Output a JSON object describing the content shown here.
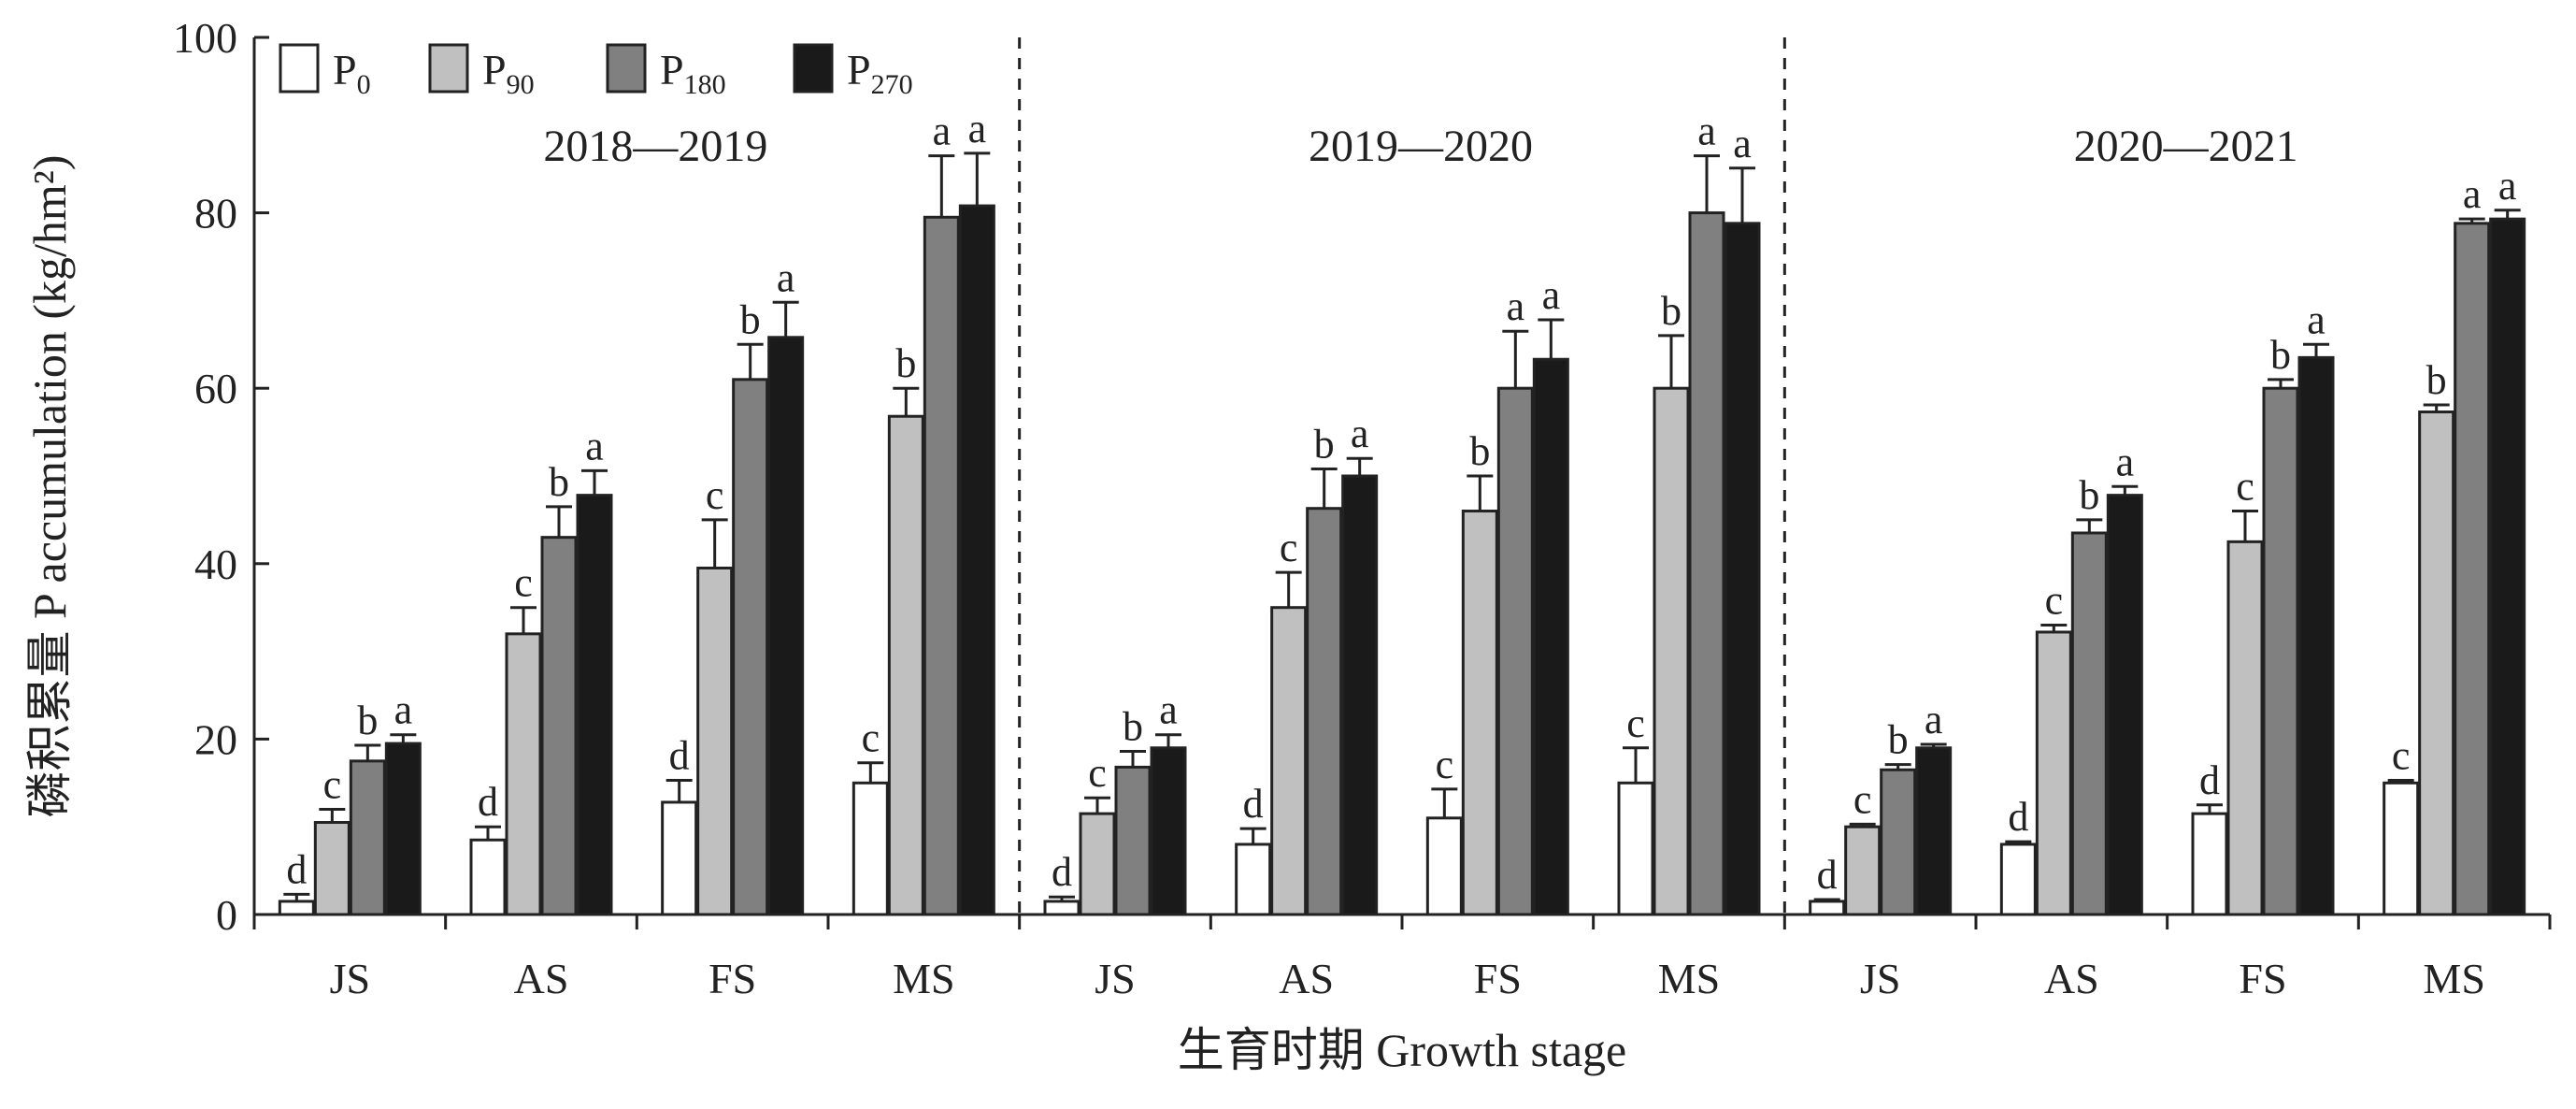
{
  "chart_data": {
    "type": "bar",
    "ylabel": "磷积累量 P accumulation (kg/hm²)",
    "xlabel": "生育时期 Growth stage",
    "ylim": [
      0,
      100
    ],
    "yticks": [
      0,
      20,
      40,
      60,
      80,
      100
    ],
    "categories": [
      "JS",
      "AS",
      "FS",
      "MS"
    ],
    "legend_placement": "top-left",
    "legend": [
      {
        "base": "P",
        "sub": "0",
        "color": "#ffffff"
      },
      {
        "base": "P",
        "sub": "90",
        "color": "#c0c0c0"
      },
      {
        "base": "P",
        "sub": "180",
        "color": "#808080"
      },
      {
        "base": "P",
        "sub": "270",
        "color": "#1a1a1a"
      }
    ],
    "groups": [
      {
        "title": "2018—2019",
        "stages": [
          {
            "values": [
              1.5,
              10.5,
              17.5,
              19.5
            ],
            "errors": [
              0.8,
              1.5,
              1.8,
              1.0
            ],
            "letters": [
              "d",
              "c",
              "b",
              "a"
            ]
          },
          {
            "values": [
              8.5,
              32.0,
              43.0,
              47.8
            ],
            "errors": [
              1.5,
              3.0,
              3.5,
              2.8
            ],
            "letters": [
              "d",
              "c",
              "b",
              "a"
            ]
          },
          {
            "values": [
              12.8,
              39.5,
              61.0,
              65.8
            ],
            "errors": [
              2.5,
              5.5,
              4.0,
              4.0
            ],
            "letters": [
              "d",
              "c",
              "b",
              "a"
            ]
          },
          {
            "values": [
              15.0,
              56.8,
              79.5,
              80.8
            ],
            "errors": [
              2.3,
              3.2,
              7.0,
              6.0
            ],
            "letters": [
              "c",
              "b",
              "a",
              "a"
            ]
          }
        ]
      },
      {
        "title": "2019—2020",
        "stages": [
          {
            "values": [
              1.5,
              11.5,
              16.8,
              19.0
            ],
            "errors": [
              0.5,
              1.8,
              1.8,
              1.5
            ],
            "letters": [
              "d",
              "c",
              "b",
              "a"
            ]
          },
          {
            "values": [
              8.0,
              35.0,
              46.3,
              50.0
            ],
            "errors": [
              1.8,
              4.0,
              4.5,
              2.0
            ],
            "letters": [
              "d",
              "c",
              "b",
              "a"
            ]
          },
          {
            "values": [
              11.0,
              46.0,
              60.0,
              63.3
            ],
            "errors": [
              3.3,
              4.0,
              6.5,
              4.5
            ],
            "letters": [
              "c",
              "b",
              "a",
              "a"
            ]
          },
          {
            "values": [
              15.0,
              60.0,
              80.0,
              78.8
            ],
            "errors": [
              4.0,
              6.0,
              6.5,
              6.3
            ],
            "letters": [
              "c",
              "b",
              "a",
              "a"
            ]
          }
        ]
      },
      {
        "title": "2020—2021",
        "stages": [
          {
            "values": [
              1.5,
              10.0,
              16.5,
              19.0
            ],
            "errors": [
              0.2,
              0.3,
              0.6,
              0.4
            ],
            "letters": [
              "d",
              "c",
              "b",
              "a"
            ]
          },
          {
            "values": [
              8.0,
              32.2,
              43.5,
              47.8
            ],
            "errors": [
              0.3,
              0.8,
              1.5,
              1.0
            ],
            "letters": [
              "d",
              "c",
              "b",
              "a"
            ]
          },
          {
            "values": [
              11.5,
              42.5,
              60.0,
              63.5
            ],
            "errors": [
              1.0,
              3.5,
              1.0,
              1.5
            ],
            "letters": [
              "d",
              "c",
              "b",
              "a"
            ]
          },
          {
            "values": [
              15.0,
              57.3,
              78.8,
              79.3
            ],
            "errors": [
              0.3,
              0.8,
              0.5,
              1.0
            ],
            "letters": [
              "c",
              "b",
              "a",
              "a"
            ]
          }
        ]
      }
    ]
  }
}
